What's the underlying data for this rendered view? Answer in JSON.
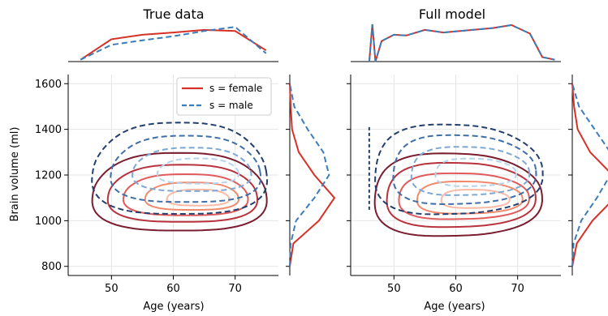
{
  "colors": {
    "female": "#d73027",
    "male": "#3a7db8",
    "female_levels": [
      "#7a1d2f",
      "#b8323e",
      "#e05b5b",
      "#f08a6c",
      "#fab9a4"
    ],
    "male_levels": [
      "#223f6e",
      "#3f6ea8",
      "#7ca8d6",
      "#b5d2ec"
    ],
    "grid": "#e6e6e6",
    "axis": "#000000"
  },
  "legend": {
    "female_label": "s = female",
    "male_label": "s = male"
  },
  "chart_data": [
    {
      "type": "contour",
      "title": "True data",
      "xlabel": "Age (years)",
      "ylabel": "Brain volume (ml)",
      "xlim": [
        43,
        77
      ],
      "ylim": [
        760,
        1640
      ],
      "xticks": [
        50,
        60,
        70
      ],
      "yticks": [
        800,
        1000,
        1200,
        1400,
        1600
      ],
      "grid": true,
      "legend_position": "top-right",
      "series": [
        {
          "name": "s = female",
          "contours": [
            {
              "center": [
                61,
                1120
              ],
              "width": 28,
              "height": 340
            },
            {
              "center": [
                61.5,
                1115
              ],
              "width": 24,
              "height": 250
            },
            {
              "center": [
                62,
                1110
              ],
              "width": 20,
              "height": 180
            },
            {
              "center": [
                63,
                1105
              ],
              "width": 15,
              "height": 120
            },
            {
              "center": [
                64,
                1100
              ],
              "width": 10,
              "height": 70
            }
          ]
        },
        {
          "name": "s = male",
          "contours": [
            {
              "center": [
                61,
                1220
              ],
              "width": 28,
              "height": 400
            },
            {
              "center": [
                62,
                1220
              ],
              "width": 24,
              "height": 290
            },
            {
              "center": [
                63,
                1220
              ],
              "width": 19,
              "height": 190
            },
            {
              "center": [
                64,
                1215
              ],
              "width": 13,
              "height": 110
            }
          ]
        }
      ],
      "marginal_x": {
        "x": [
          45,
          50,
          55,
          60,
          65,
          70,
          75
        ],
        "female": [
          0.05,
          0.6,
          0.72,
          0.78,
          0.85,
          0.82,
          0.3
        ],
        "male": [
          0.05,
          0.45,
          0.57,
          0.68,
          0.82,
          0.93,
          0.22
        ]
      },
      "marginal_y": {
        "y": [
          800,
          900,
          1000,
          1100,
          1200,
          1300,
          1400,
          1500,
          1600
        ],
        "female": [
          0.0,
          0.08,
          0.65,
          1.0,
          0.55,
          0.2,
          0.05,
          0.02,
          0.0
        ],
        "male": [
          0.0,
          0.02,
          0.14,
          0.55,
          0.88,
          0.75,
          0.4,
          0.1,
          0.0
        ]
      }
    },
    {
      "type": "contour",
      "title": "Full model",
      "xlabel": "Age (years)",
      "ylabel": "",
      "xlim": [
        43,
        77
      ],
      "ylim": [
        760,
        1640
      ],
      "xticks": [
        50,
        60,
        70
      ],
      "yticks": [
        800,
        1000,
        1200,
        1400,
        1600
      ],
      "grid": true,
      "series": [
        {
          "name": "s = female",
          "contours": [
            {
              "center": [
                60,
                1110
              ],
              "width": 27,
              "height": 360
            },
            {
              "center": [
                60.5,
                1110
              ],
              "width": 24,
              "height": 280
            },
            {
              "center": [
                61,
                1105
              ],
              "width": 21,
              "height": 200
            },
            {
              "center": [
                62,
                1100
              ],
              "width": 17,
              "height": 140
            },
            {
              "center": [
                63,
                1095
              ],
              "width": 11,
              "height": 80
            }
          ]
        },
        {
          "name": "s = male",
          "contours": [
            {
              "center": [
                60,
                1220
              ],
              "width": 27,
              "height": 390
            },
            {
              "center": [
                61,
                1220
              ],
              "width": 23,
              "height": 300
            },
            {
              "center": [
                62,
                1215
              ],
              "width": 19,
              "height": 210
            },
            {
              "center": [
                63,
                1210
              ],
              "width": 13,
              "height": 120
            }
          ]
        }
      ],
      "marginal_x": {
        "x": [
          46,
          46.5,
          47,
          48,
          50,
          52,
          55,
          58,
          62,
          66,
          69,
          72,
          74,
          76
        ],
        "female": [
          0.0,
          1.0,
          0.0,
          0.55,
          0.72,
          0.7,
          0.85,
          0.78,
          0.84,
          0.9,
          0.98,
          0.75,
          0.12,
          0.05
        ],
        "male": [
          0.0,
          1.0,
          0.0,
          0.55,
          0.72,
          0.7,
          0.85,
          0.78,
          0.84,
          0.9,
          0.98,
          0.75,
          0.12,
          0.05
        ]
      },
      "marginal_y": {
        "y": [
          800,
          900,
          1000,
          1100,
          1200,
          1300,
          1400,
          1500,
          1600
        ],
        "female": [
          0.0,
          0.1,
          0.45,
          0.95,
          0.9,
          0.4,
          0.12,
          0.04,
          0.0
        ],
        "male": [
          0.0,
          0.03,
          0.2,
          0.55,
          0.85,
          0.85,
          0.5,
          0.15,
          0.0
        ]
      }
    }
  ]
}
